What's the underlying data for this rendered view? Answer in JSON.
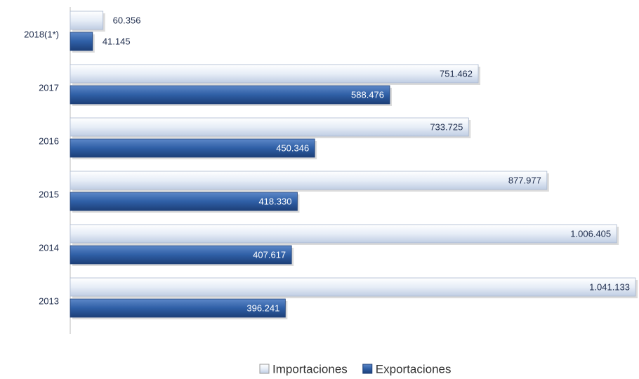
{
  "chart_data": {
    "type": "bar",
    "orientation": "horizontal",
    "categories": [
      "2018(1*)",
      "2017",
      "2016",
      "2015",
      "2014",
      "2013"
    ],
    "series": [
      {
        "name": "Importaciones",
        "color": "#dbe5f3",
        "values": [
          60356,
          751462,
          733725,
          877977,
          1006405,
          1041133
        ],
        "value_labels": [
          "60.356",
          "751.462",
          "733.725",
          "877.977",
          "1.006.405",
          "1.041.133"
        ]
      },
      {
        "name": "Exportaciones",
        "color": "#2f5fa6",
        "values": [
          41145,
          588476,
          450346,
          418330,
          407617,
          396241
        ],
        "value_labels": [
          "41.145",
          "588.476",
          "450.346",
          "418.330",
          "407.617",
          "396.241"
        ]
      }
    ]
  }
}
